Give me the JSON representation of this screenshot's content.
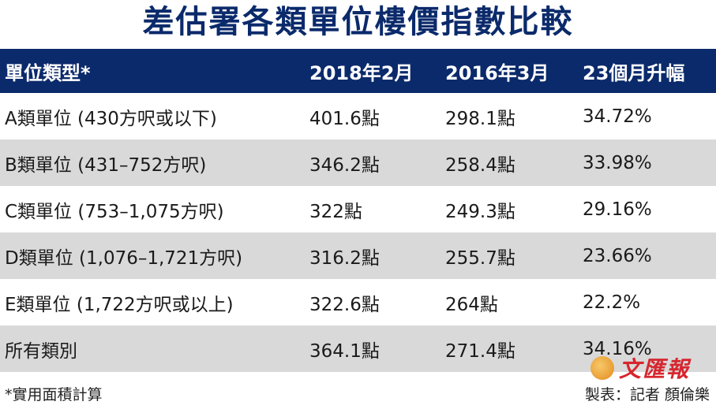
{
  "title": "差估署各類單位樓價指數比較",
  "table": {
    "headers": [
      "單位類型*",
      "2018年2月",
      "2016年3月",
      "23個月升幅"
    ],
    "rows": [
      [
        "A類單位 (430方呎或以下)",
        "401.6點",
        "298.1點",
        "34.72%"
      ],
      [
        "B類單位 (431–752方呎)",
        "346.2點",
        "258.4點",
        "33.98%"
      ],
      [
        "C類單位 (753–1,075方呎)",
        "322點",
        "249.3點",
        "29.16%"
      ],
      [
        "D類單位 (1,076–1,721方呎)",
        "316.2點",
        "255.7點",
        "23.66%"
      ],
      [
        "E類單位 (1,722方呎或以上)",
        "322.6點",
        "264點",
        "22.2%"
      ],
      [
        "所有類別",
        "364.1點",
        "271.4點",
        "34.16%"
      ]
    ]
  },
  "footnote": "*實用面積計算",
  "credit": "製表：記者  顏倫樂",
  "logo": {
    "text": "文匯報",
    "icon": "wenweipo-logo-icon"
  },
  "colors": {
    "header_bg": "#0b2a6b",
    "title": "#0b2a6b",
    "stripe": "#d9d9d9",
    "logo_red": "#d6262e"
  }
}
